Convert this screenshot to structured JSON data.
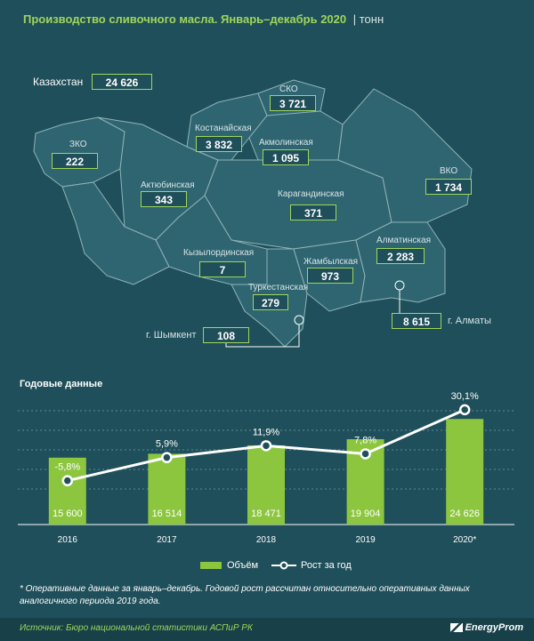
{
  "header": {
    "title": "Производство сливочного масла. Январь–декабрь 2020",
    "unit": "тонн"
  },
  "map": {
    "country_label": "Казахстан",
    "country_value": "24 626",
    "regions": [
      {
        "name": "СКО",
        "value": "3 721"
      },
      {
        "name": "Костанайская",
        "value": "3 832"
      },
      {
        "name": "Акмолинская",
        "value": "1 095"
      },
      {
        "name": "ЗКО",
        "value": "222"
      },
      {
        "name": "Актюбинская",
        "value": "343"
      },
      {
        "name": "Карагандинская",
        "value": "371"
      },
      {
        "name": "ВКО",
        "value": "1 734"
      },
      {
        "name": "Кызылординская",
        "value": "7"
      },
      {
        "name": "Жамбылская",
        "value": "973"
      },
      {
        "name": "Алматинская",
        "value": "2 283"
      },
      {
        "name": "Туркестанская",
        "value": "279"
      },
      {
        "name": "г. Шымкент",
        "value": "108"
      },
      {
        "name": "г. Алматы",
        "value": "8 615"
      }
    ]
  },
  "section_title": "Годовые данные",
  "chart_data": {
    "type": "bar",
    "categories": [
      "2016",
      "2017",
      "2018",
      "2019",
      "2020*"
    ],
    "series": [
      {
        "name": "Объём",
        "type": "bar",
        "values": [
          15600,
          16514,
          18471,
          19904,
          24626
        ],
        "labels": [
          "15 600",
          "16 514",
          "18 471",
          "19 904",
          "24 626"
        ]
      },
      {
        "name": "Рост за год",
        "type": "line",
        "values": [
          -5.8,
          5.9,
          11.9,
          7.8,
          30.1
        ],
        "labels": [
          "-5,8%",
          "5,9%",
          "11,9%",
          "7,8%",
          "30,1%"
        ]
      }
    ],
    "colors": {
      "bar": "#8cc63f",
      "line": "#ffffff",
      "background": "#1f4f5a",
      "title": "#9fd65a"
    },
    "grid": true,
    "legend": "bottom"
  },
  "note": "* Оперативные данные за январь–декабрь. Годовой рост рассчитан относительно оперативных данных аналогичного периода 2019 года.",
  "footer": {
    "source": "Источник: Бюро национальной статистики АСПиР РК",
    "logo": "EnergyProm"
  }
}
